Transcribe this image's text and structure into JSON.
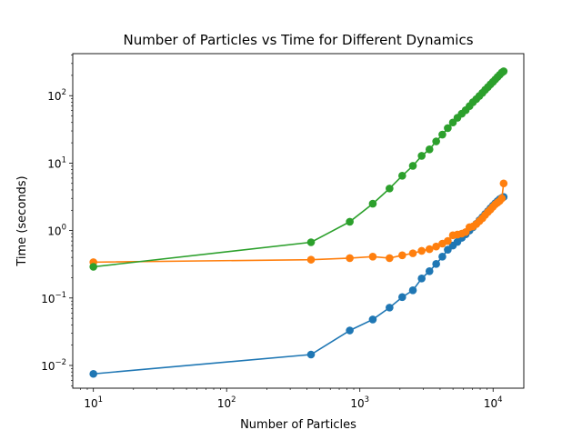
{
  "chart_data": {
    "type": "line",
    "title": "Number of Particles vs Time for Different Dynamics",
    "xlabel": "Number of Particles",
    "ylabel": "Time (seconds)",
    "xscale": "log",
    "yscale": "log",
    "xlim": [
      7,
      17000
    ],
    "ylim": [
      0.0046,
      420
    ],
    "grid": false,
    "legend": "none",
    "x_ticks": [
      {
        "value": 10,
        "base": "10",
        "exp": "1"
      },
      {
        "value": 100,
        "base": "10",
        "exp": "2"
      },
      {
        "value": 1000,
        "base": "10",
        "exp": "3"
      },
      {
        "value": 10000,
        "base": "10",
        "exp": "4"
      }
    ],
    "y_ticks": [
      {
        "value": 0.01,
        "base": "10",
        "exp": "−2"
      },
      {
        "value": 0.1,
        "base": "10",
        "exp": "−1"
      },
      {
        "value": 1,
        "base": "10",
        "exp": "0"
      },
      {
        "value": 10,
        "base": "10",
        "exp": "1"
      },
      {
        "value": 100,
        "base": "10",
        "exp": "2"
      }
    ],
    "series": [
      {
        "color": "#1f77b4",
        "x": [
          10,
          430,
          840,
          1250,
          1670,
          2080,
          2500,
          2910,
          3330,
          3740,
          4160,
          4570,
          4990,
          5400,
          5820,
          6230,
          6650,
          7060,
          7480,
          7890,
          8310,
          8720,
          9140,
          9550,
          9970,
          10380,
          10800,
          11210,
          11630,
          12000
        ],
        "y": [
          0.0075,
          0.0145,
          0.033,
          0.048,
          0.072,
          0.103,
          0.13,
          0.195,
          0.25,
          0.32,
          0.41,
          0.52,
          0.6,
          0.68,
          0.78,
          0.88,
          1.0,
          1.12,
          1.26,
          1.42,
          1.58,
          1.76,
          1.94,
          2.14,
          2.34,
          2.54,
          2.74,
          2.92,
          3.05,
          3.15
        ]
      },
      {
        "color": "#ff7f0e",
        "x": [
          10,
          430,
          840,
          1250,
          1670,
          2080,
          2500,
          2910,
          3330,
          3740,
          4160,
          4570,
          4990,
          5400,
          5820,
          6230,
          6650,
          7060,
          7480,
          7890,
          8310,
          8720,
          9140,
          9550,
          9970,
          10380,
          10800,
          11210,
          11630,
          12000
        ],
        "y": [
          0.34,
          0.37,
          0.39,
          0.41,
          0.39,
          0.43,
          0.46,
          0.5,
          0.53,
          0.58,
          0.64,
          0.7,
          0.85,
          0.87,
          0.9,
          0.95,
          1.12,
          1.15,
          1.25,
          1.38,
          1.52,
          1.7,
          1.88,
          2.05,
          2.25,
          2.45,
          2.6,
          2.75,
          3.0,
          5.0
        ]
      },
      {
        "color": "#2ca02c",
        "x": [
          10,
          430,
          840,
          1250,
          1670,
          2080,
          2500,
          2910,
          3330,
          3740,
          4160,
          4570,
          4990,
          5400,
          5820,
          6230,
          6650,
          7060,
          7480,
          7890,
          8310,
          8720,
          9140,
          9550,
          9970,
          10380,
          10800,
          11210,
          11630,
          12000
        ],
        "y": [
          0.29,
          0.67,
          1.35,
          2.5,
          4.2,
          6.5,
          9.1,
          12.8,
          16.0,
          21.0,
          26.5,
          33.0,
          40.0,
          47.0,
          54.0,
          61.0,
          70.0,
          80.0,
          89.0,
          99.0,
          110.0,
          122.0,
          134.0,
          147.0,
          160.0,
          174.0,
          189.0,
          204.0,
          220.0,
          230.0
        ]
      }
    ]
  }
}
